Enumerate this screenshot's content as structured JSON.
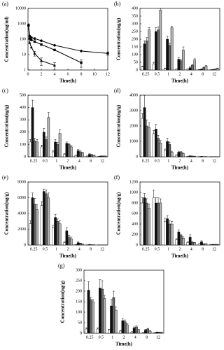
{
  "chart_data": [
    {
      "type": "line",
      "label": "(a)",
      "ylabel": "Concentration(ng/ml)",
      "xlabel": "Time(h)",
      "log_y": true,
      "x": [
        0.083,
        0.25,
        0.5,
        1,
        2,
        4,
        8,
        12
      ],
      "xlim": [
        0,
        12
      ],
      "xticks": [
        0,
        2,
        4,
        6,
        8,
        10,
        12
      ],
      "ylim": [
        1,
        10000
      ],
      "yticks": [
        1,
        10,
        100,
        1000,
        10000
      ],
      "series": [
        {
          "color": "#000000",
          "marker": "circle",
          "values": [
            800,
            160,
            130,
            110,
            80,
            40,
            17,
            12
          ],
          "errors": [
            null,
            null,
            null,
            null,
            null,
            null,
            null,
            3
          ]
        },
        {
          "color": "#000000",
          "marker": "square",
          "values": [
            800,
            110,
            90,
            70,
            45,
            20,
            3,
            null
          ],
          "errors": [
            null,
            null,
            null,
            null,
            null,
            null,
            1.5,
            null
          ]
        },
        {
          "color": "#000000",
          "marker": "triangle",
          "values": [
            800,
            60,
            30,
            12,
            4,
            2,
            null,
            null
          ],
          "errors": [
            null,
            null,
            null,
            4,
            2,
            1,
            null,
            null
          ]
        }
      ]
    },
    {
      "type": "bar",
      "label": "(b)",
      "ylabel": "Concentration(ng/g)",
      "xlabel": "Time(h)",
      "categories": [
        "0.25",
        "0.5",
        "1",
        "2",
        "4",
        "8",
        "12"
      ],
      "ylim": [
        0,
        400
      ],
      "yticks": [
        0,
        50,
        100,
        150,
        200,
        250,
        300,
        350,
        400
      ],
      "series": [
        {
          "color": "#ffffff",
          "values": [
            20,
            40,
            10,
            5,
            5,
            2,
            1
          ],
          "errors": [
            5,
            10,
            3,
            2,
            2,
            1,
            1
          ]
        },
        {
          "color": "#111111",
          "values": [
            170,
            250,
            200,
            70,
            15,
            5,
            3
          ],
          "errors": [
            20,
            25,
            20,
            10,
            5,
            2,
            1
          ]
        },
        {
          "color": "#666666",
          "values": [
            190,
            260,
            160,
            60,
            30,
            15,
            5
          ],
          "errors": [
            20,
            20,
            15,
            10,
            5,
            3,
            2
          ]
        },
        {
          "color": "#b0b0b0",
          "values": [
            260,
            390,
            275,
            130,
            65,
            25,
            10
          ],
          "errors": [
            15,
            10,
            10,
            20,
            8,
            5,
            3
          ]
        }
      ]
    },
    {
      "type": "bar",
      "label": "(c)",
      "ylabel": "Concentration(ng/g)",
      "xlabel": "Time(h)",
      "categories": [
        "0.25",
        "0.5",
        "1",
        "2",
        "4",
        "8",
        "12"
      ],
      "ylim": [
        0,
        500
      ],
      "yticks": [
        0,
        100,
        200,
        300,
        400,
        500
      ],
      "series": [
        {
          "color": "#ffffff",
          "values": [
            120,
            80,
            40,
            20,
            10,
            5,
            2
          ],
          "errors": [
            20,
            15,
            10,
            5,
            3,
            2,
            1
          ]
        },
        {
          "color": "#111111",
          "values": [
            400,
            200,
            120,
            110,
            50,
            20,
            5
          ],
          "errors": [
            60,
            30,
            20,
            10,
            8,
            5,
            2
          ]
        },
        {
          "color": "#666666",
          "values": [
            130,
            140,
            100,
            100,
            40,
            15,
            5
          ],
          "errors": [
            20,
            20,
            15,
            10,
            8,
            4,
            2
          ]
        },
        {
          "color": "#b0b0b0",
          "values": [
            120,
            320,
            190,
            80,
            30,
            10,
            5
          ],
          "errors": [
            20,
            40,
            30,
            10,
            5,
            3,
            2
          ]
        }
      ]
    },
    {
      "type": "bar",
      "label": "(d)",
      "ylabel": "Concentration(ng/g)",
      "xlabel": "Time(h)",
      "categories": [
        "0.25",
        "0.5",
        "1",
        "2",
        "4",
        "8",
        "12"
      ],
      "ylim": [
        0,
        4000
      ],
      "yticks": [
        0,
        1000,
        2000,
        3000,
        4000
      ],
      "series": [
        {
          "color": "#ffffff",
          "values": [
            2500,
            1500,
            400,
            100,
            30,
            10,
            5
          ],
          "errors": [
            300,
            200,
            100,
            30,
            10,
            5,
            2
          ]
        },
        {
          "color": "#111111",
          "values": [
            3200,
            1800,
            1000,
            300,
            50,
            20,
            5
          ],
          "errors": [
            800,
            300,
            200,
            60,
            20,
            10,
            2
          ]
        },
        {
          "color": "#666666",
          "values": [
            2000,
            1200,
            800,
            300,
            40,
            10,
            5
          ],
          "errors": [
            400,
            200,
            150,
            50,
            10,
            5,
            2
          ]
        },
        {
          "color": "#b0b0b0",
          "values": [
            1900,
            900,
            300,
            200,
            30,
            10,
            5
          ],
          "errors": [
            300,
            150,
            60,
            40,
            10,
            5,
            2
          ]
        }
      ]
    },
    {
      "type": "bar",
      "label": "(e)",
      "ylabel": "Concentration(ng/g)",
      "xlabel": "Time(h)",
      "categories": [
        "0.25",
        "0.5",
        "1",
        "2",
        "4",
        "8",
        "12"
      ],
      "ylim": [
        0,
        8000
      ],
      "yticks": [
        0,
        2000,
        4000,
        6000,
        8000
      ],
      "series": [
        {
          "color": "#ffffff",
          "values": [
            2700,
            5000,
            2200,
            300,
            50,
            20,
            10
          ],
          "errors": [
            400,
            500,
            300,
            100,
            20,
            10,
            5
          ]
        },
        {
          "color": "#111111",
          "values": [
            6000,
            6800,
            3500,
            1800,
            300,
            50,
            10
          ],
          "errors": [
            600,
            300,
            400,
            400,
            100,
            20,
            5
          ]
        },
        {
          "color": "#666666",
          "values": [
            5200,
            6500,
            3000,
            1000,
            200,
            30,
            10
          ],
          "errors": [
            700,
            500,
            300,
            200,
            50,
            10,
            5
          ]
        },
        {
          "color": "#b0b0b0",
          "values": [
            4500,
            6000,
            2700,
            800,
            100,
            20,
            10
          ],
          "errors": [
            600,
            600,
            400,
            200,
            30,
            10,
            5
          ]
        }
      ]
    },
    {
      "type": "bar",
      "label": "(f)",
      "ylabel": "Concentration(ng/g)",
      "xlabel": "Time(h)",
      "categories": [
        "0.25",
        "0.5",
        "1",
        "2",
        "4",
        "8",
        "12"
      ],
      "ylim": [
        0,
        1200
      ],
      "yticks": [
        0,
        200,
        400,
        600,
        800,
        1000,
        1200
      ],
      "series": [
        {
          "color": "#ffffff",
          "values": [
            800,
            900,
            450,
            100,
            50,
            20,
            10
          ],
          "errors": [
            100,
            150,
            60,
            20,
            10,
            5,
            3
          ]
        },
        {
          "color": "#111111",
          "values": [
            900,
            800,
            500,
            250,
            150,
            60,
            10
          ],
          "errors": [
            80,
            100,
            60,
            40,
            50,
            20,
            3
          ]
        },
        {
          "color": "#666666",
          "values": [
            800,
            800,
            400,
            180,
            50,
            20,
            10
          ],
          "errors": [
            80,
            100,
            60,
            30,
            20,
            5,
            3
          ]
        },
        {
          "color": "#b0b0b0",
          "values": [
            700,
            800,
            400,
            130,
            40,
            20,
            10
          ],
          "errors": [
            80,
            80,
            50,
            30,
            10,
            5,
            3
          ]
        }
      ]
    },
    {
      "type": "bar",
      "label": "(g)",
      "ylabel": "Concentration(ng/g)",
      "xlabel": "Time(h)",
      "categories": [
        "0.25",
        "0.5",
        "1",
        "2",
        "4",
        "8",
        "12"
      ],
      "ylim": [
        0,
        300
      ],
      "yticks": [
        0,
        50,
        100,
        150,
        200,
        250,
        300
      ],
      "series": [
        {
          "color": "#ffffff",
          "values": [
            20,
            20,
            15,
            10,
            5,
            3,
            2
          ],
          "errors": [
            5,
            5,
            4,
            3,
            2,
            1,
            1
          ]
        },
        {
          "color": "#111111",
          "values": [
            205,
            215,
            130,
            60,
            25,
            15,
            5
          ],
          "errors": [
            40,
            40,
            30,
            10,
            5,
            3,
            1
          ]
        },
        {
          "color": "#666666",
          "values": [
            160,
            210,
            170,
            55,
            30,
            20,
            5
          ],
          "errors": [
            10,
            40,
            30,
            8,
            5,
            3,
            1
          ]
        },
        {
          "color": "#b0b0b0",
          "values": [
            150,
            165,
            110,
            40,
            15,
            10,
            5
          ],
          "errors": [
            10,
            15,
            15,
            5,
            3,
            2,
            1
          ]
        }
      ]
    }
  ]
}
